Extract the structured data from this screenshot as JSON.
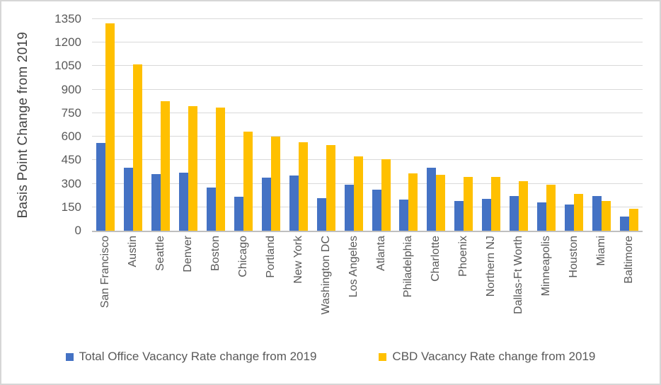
{
  "chart_data": {
    "type": "bar",
    "title": "",
    "ylabel": "Basis Point Change from 2019",
    "xlabel": "",
    "ylim": [
      0,
      1350
    ],
    "ytick_step": 150,
    "grid": true,
    "legend_position": "bottom",
    "categories": [
      "San Francisco",
      "Austin",
      "Seattle",
      "Denver",
      "Boston",
      "Chicago",
      "Portland",
      "New York",
      "Washington DC",
      "Los Angeles",
      "Atlanta",
      "Philadelphia",
      "Charlotte",
      "Phoenix",
      "Northern NJ",
      "Dallas-Ft Worth",
      "Minneapolis",
      "Houston",
      "Miami",
      "Baltimore"
    ],
    "series": [
      {
        "name": "Total Office Vacancy Rate change from 2019",
        "color": "#4472C4",
        "values": [
          560,
          400,
          360,
          370,
          275,
          215,
          340,
          350,
          210,
          295,
          260,
          200,
          400,
          190,
          205,
          220,
          180,
          165,
          220,
          90
        ]
      },
      {
        "name": "CBD Vacancy Rate change from 2019",
        "color": "#FFC000",
        "values": [
          1325,
          1060,
          825,
          795,
          785,
          630,
          600,
          565,
          545,
          475,
          455,
          365,
          355,
          345,
          345,
          315,
          295,
          235,
          190,
          140
        ]
      }
    ]
  },
  "style_colors": {
    "gridline": "#d9d9d9",
    "axis_line": "#bfbfbf",
    "tick_text": "#595959",
    "axis_title_text": "#444444",
    "frame_border": "#d6d6d6",
    "background": "#ffffff"
  }
}
